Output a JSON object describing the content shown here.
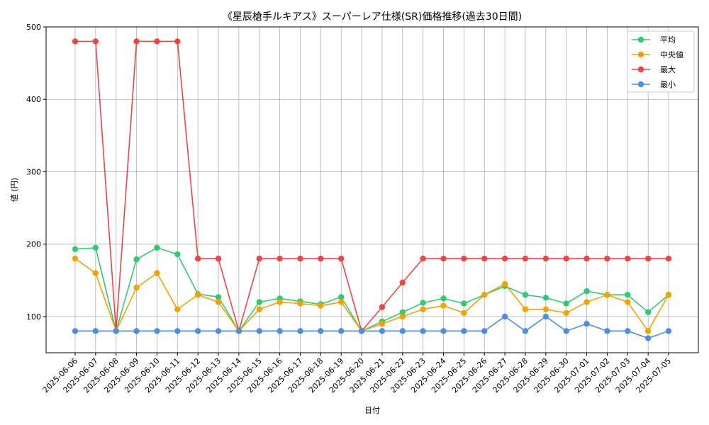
{
  "chart_data": {
    "type": "line",
    "title": "《星辰槍手ルキアス》スーパーレア仕様(SR)価格推移(過去30日間)",
    "xlabel": "日付",
    "ylabel": "値 (円)",
    "ylim": [
      50,
      500
    ],
    "yticks": [
      100,
      200,
      300,
      400,
      500
    ],
    "grid": true,
    "legend_position": "top-right",
    "categories": [
      "2025-06-06",
      "2025-06-07",
      "2025-06-08",
      "2025-06-09",
      "2025-06-10",
      "2025-06-11",
      "2025-06-12",
      "2025-06-13",
      "2025-06-14",
      "2025-06-15",
      "2025-06-16",
      "2025-06-17",
      "2025-06-18",
      "2025-06-19",
      "2025-06-20",
      "2025-06-21",
      "2025-06-22",
      "2025-06-23",
      "2025-06-24",
      "2025-06-25",
      "2025-06-26",
      "2025-06-27",
      "2025-06-28",
      "2025-06-29",
      "2025-06-30",
      "2025-07-01",
      "2025-07-02",
      "2025-07-03",
      "2025-07-04",
      "2025-07-05"
    ],
    "series": [
      {
        "name": "平均",
        "color": "#2ecc71",
        "values": [
          193,
          195,
          80,
          179,
          195,
          186,
          131,
          127,
          80,
          120,
          125,
          121,
          117,
          127,
          80,
          93,
          106,
          119,
          125,
          118,
          130,
          142,
          130,
          126,
          118,
          135,
          130,
          130,
          106,
          130
        ]
      },
      {
        "name": "中央値",
        "color": "#f5a100",
        "values": [
          180,
          160,
          80,
          140,
          160,
          110,
          130,
          120,
          80,
          110,
          120,
          118,
          115,
          120,
          80,
          90,
          100,
          110,
          115,
          105,
          130,
          145,
          110,
          110,
          105,
          120,
          130,
          120,
          80,
          130
        ]
      },
      {
        "name": "最大",
        "color": "#ef4444",
        "values": [
          480,
          480,
          80,
          480,
          480,
          480,
          180,
          180,
          80,
          180,
          180,
          180,
          180,
          180,
          80,
          113,
          147,
          180,
          180,
          180,
          180,
          180,
          180,
          180,
          180,
          180,
          180,
          180,
          180,
          180
        ]
      },
      {
        "name": "最小",
        "color": "#4a90e2",
        "values": [
          80,
          80,
          80,
          80,
          80,
          80,
          80,
          80,
          80,
          80,
          80,
          80,
          80,
          80,
          80,
          80,
          80,
          80,
          80,
          80,
          80,
          100,
          80,
          100,
          80,
          90,
          80,
          80,
          70,
          80
        ]
      }
    ]
  }
}
